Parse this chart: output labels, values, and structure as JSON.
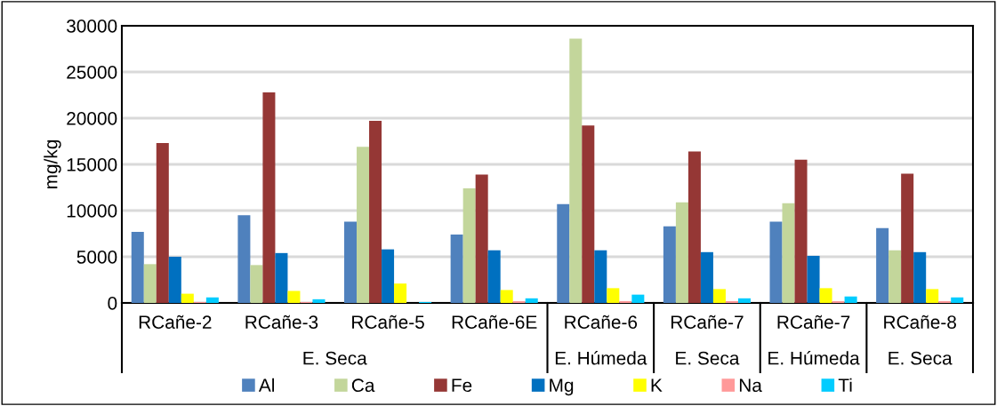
{
  "chart_data": {
    "type": "bar",
    "ylabel": "mg/kg",
    "categories": [
      "RCañe-2",
      "RCañe-3",
      "RCañe-5",
      "RCañe-6E",
      "RCañe-6",
      "RCañe-7",
      "RCañe-7",
      "RCañe-8"
    ],
    "series": [
      {
        "name": "Al",
        "color": "#4f81bd",
        "values": [
          7700,
          9500,
          8800,
          7400,
          10700,
          8300,
          8800,
          8100
        ]
      },
      {
        "name": "Ca",
        "color": "#c3d69b",
        "values": [
          4200,
          4100,
          16900,
          12400,
          28600,
          10900,
          10800,
          5700
        ]
      },
      {
        "name": "Fe",
        "color": "#953735",
        "values": [
          17300,
          22800,
          19700,
          13900,
          19200,
          16400,
          15500,
          14000
        ]
      },
      {
        "name": "Mg",
        "color": "#0070c0",
        "values": [
          5000,
          5400,
          5800,
          5700,
          5700,
          5500,
          5100,
          5500
        ]
      },
      {
        "name": "K",
        "color": "#ffff00",
        "values": [
          1000,
          1300,
          2100,
          1400,
          1600,
          1500,
          1600,
          1500
        ]
      },
      {
        "name": "Na",
        "color": "#ff9999",
        "values": [
          100,
          100,
          0,
          200,
          200,
          200,
          200,
          200
        ]
      },
      {
        "name": "Ti",
        "color": "#00ccff",
        "values": [
          600,
          400,
          100,
          500,
          900,
          500,
          700,
          600
        ]
      }
    ],
    "annotations": [
      "E. Seca",
      "E. Húmeda",
      "E. Seca",
      "E. Húmeda",
      "E. Seca"
    ],
    "ylim": [
      0,
      30000
    ],
    "yticks": [
      0,
      5000,
      10000,
      15000,
      20000,
      25000,
      30000
    ],
    "grid": "y",
    "legend": "bottom"
  }
}
